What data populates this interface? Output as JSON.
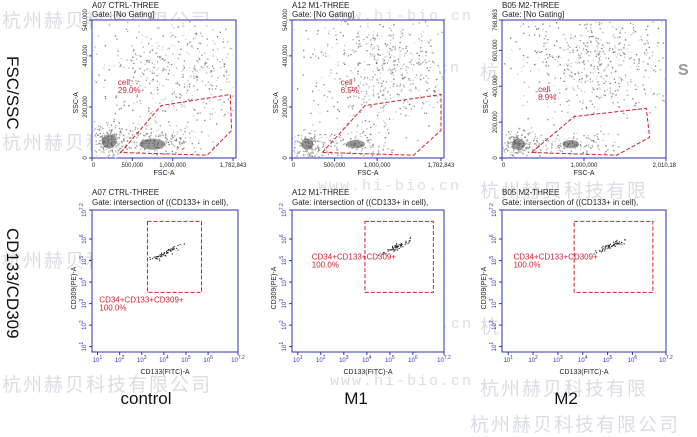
{
  "row_labels": [
    "FSC/SSC",
    "CD133/CD309"
  ],
  "column_labels": [
    "control",
    "M1",
    "M2"
  ],
  "watermarks": {
    "cn": "杭州赫贝科技有限公司",
    "url": "www.hi-bio.cn",
    "cn_short": "杭州赫贝科技有限"
  },
  "corner_mark": "S",
  "colors": {
    "axis": "#2b33b5",
    "gate": "#d11f2f",
    "density": "#555555",
    "text": "#222222"
  },
  "chart_data": [
    {
      "type": "scatter",
      "title": "A07 CTRL-THREE",
      "subtitle": "Gate: [No Gating]",
      "xlabel": "FSC-A",
      "ylabel": "SSC-A",
      "xticks": [
        "0",
        "500,000",
        "1,000,000",
        "1,782,843"
      ],
      "yticks": [
        "0",
        "200,000",
        "400,000",
        "540,000"
      ],
      "gate": {
        "name": "cell",
        "percent": "29.0%"
      }
    },
    {
      "type": "scatter",
      "title": "A12 M1-THREE",
      "subtitle": "Gate: [No Gating]",
      "xlabel": "FSC-A",
      "ylabel": "SSC-A",
      "xticks": [
        "0",
        "500,000",
        "1,000,000",
        "1,782,843"
      ],
      "yticks": [
        "0",
        "200,000",
        "400,000",
        "540,000"
      ],
      "gate": {
        "name": "cell",
        "percent": "6.5%"
      }
    },
    {
      "type": "scatter",
      "title": "B05 M2-THREE",
      "subtitle": "Gate: [No Gating]",
      "xlabel": "FSC-A",
      "ylabel": "SSC-A",
      "xticks": [
        "0",
        "1,000,000",
        "2,010,184"
      ],
      "yticks": [
        "0",
        "200,000",
        "400,000",
        "600,000",
        "768,863"
      ],
      "gate": {
        "name": "cell",
        "percent": "8.9%"
      }
    },
    {
      "type": "scatter",
      "title": "A07 CTRL-THREE",
      "subtitle": "Gate: intersection of ((CD133+ in cell),",
      "xlabel": "CD133(FITC)-A",
      "ylabel": "CD309(PE)-A",
      "xticks": [
        "10^1",
        "10^2",
        "10^3",
        "10^4",
        "10^5",
        "10^6",
        "10^7.2"
      ],
      "yticks": [
        "10^1",
        "10^2",
        "10^3",
        "10^4",
        "10^5",
        "10^6",
        "10^7.2"
      ],
      "gate": {
        "name": "CD34+CD133+CD309+",
        "percent": "100.0%"
      }
    },
    {
      "type": "scatter",
      "title": "A12 M1-THREE",
      "subtitle": "Gate: intersection of ((CD133+ in cell),",
      "xlabel": "CD133(FITC)-A",
      "ylabel": "CD309(PE)-A",
      "xticks": [
        "10^1",
        "10^2",
        "10^3",
        "10^4",
        "10^5",
        "10^6",
        "10^7.2"
      ],
      "yticks": [
        "10^1",
        "10^2",
        "10^3",
        "10^4",
        "10^5",
        "10^6",
        "10^7.2"
      ],
      "gate": {
        "name": "CD34+CD133+CD309+",
        "percent": "100.0%"
      }
    },
    {
      "type": "scatter",
      "title": "B05 M2-THREE",
      "subtitle": "Gate: intersection of ((CD133+ in cell),",
      "xlabel": "CD133(FITC)-A",
      "ylabel": "CD309(PE)-A",
      "xticks": [
        "10^1",
        "10^2",
        "10^3",
        "10^4",
        "10^5",
        "10^6",
        "10^7.2"
      ],
      "yticks": [
        "10^1",
        "10^2",
        "10^3",
        "10^4",
        "10^5",
        "10^6",
        "10^7.2"
      ],
      "gate": {
        "name": "CD34+CD133+CD309+",
        "percent": "100.0%"
      }
    }
  ]
}
